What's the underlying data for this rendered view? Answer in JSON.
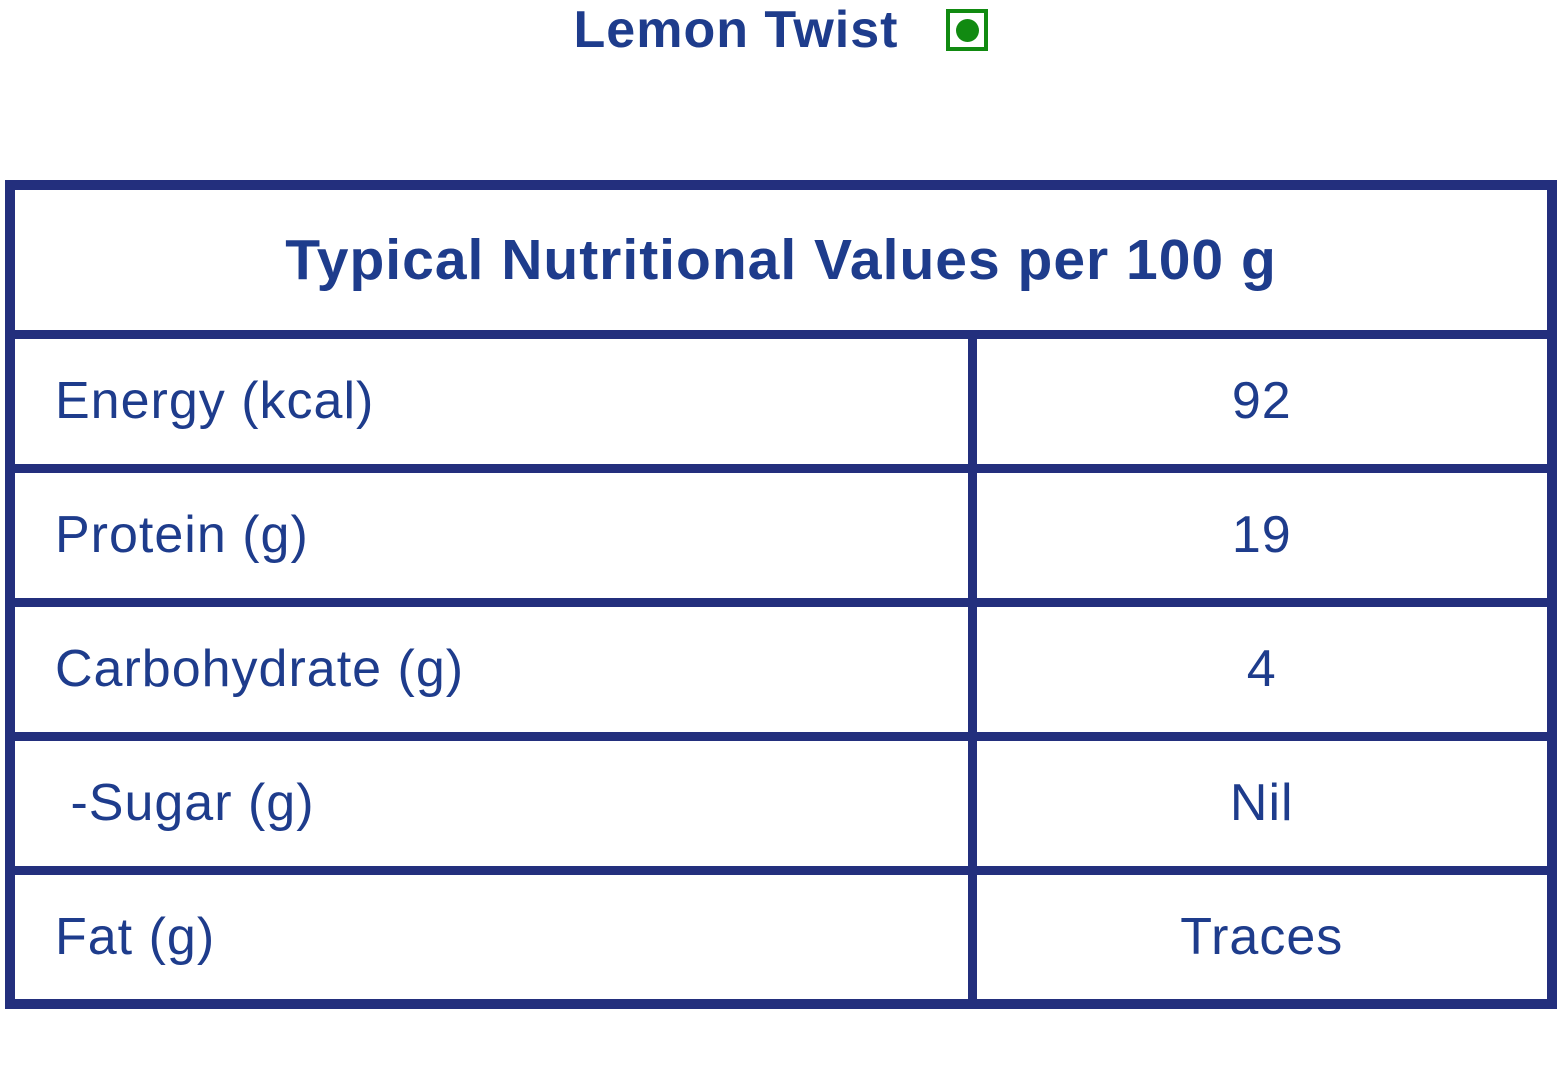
{
  "colors": {
    "navy_border": "#232F7D",
    "navy_text": "#1E3C8C",
    "veg_green": "#118A11"
  },
  "title": {
    "text": "Lemon Twist",
    "veg_mark": "vegetarian-green-dot-mark"
  },
  "table": {
    "header": "Typical Nutritional Values per 100 g",
    "rows": [
      {
        "label": "Energy (kcal)",
        "value": "92"
      },
      {
        "label": "Protein (g)",
        "value": "19"
      },
      {
        "label": "Carbohydrate (g)",
        "value": "4"
      },
      {
        "label": " -Sugar (g)",
        "value": "Nil"
      },
      {
        "label": "Fat (g)",
        "value": "Traces"
      }
    ]
  }
}
